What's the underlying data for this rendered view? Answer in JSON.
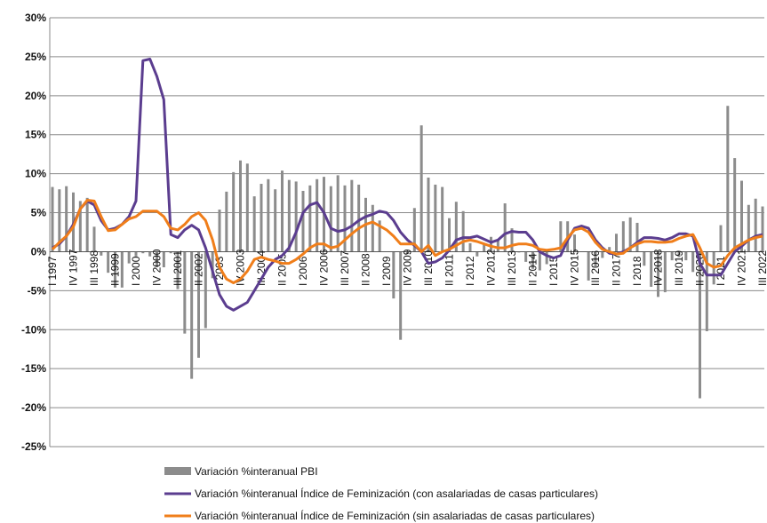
{
  "chart_data": {
    "type": "bar-line",
    "categories": [
      "I 1997",
      null,
      null,
      "IV 1997",
      null,
      null,
      "III 1998",
      null,
      null,
      "II 1999",
      null,
      null,
      "I 2000",
      null,
      null,
      "IV 2000",
      null,
      null,
      "III 2001",
      null,
      null,
      "II 2002",
      null,
      null,
      "I 2003",
      null,
      null,
      "IV 2003",
      null,
      null,
      "III 2004",
      null,
      null,
      "II 2005",
      null,
      null,
      "I 2006",
      null,
      null,
      "IV 2006",
      null,
      null,
      "III 2007",
      null,
      null,
      "II 2008",
      null,
      null,
      "I 2009",
      null,
      null,
      "IV 2009",
      null,
      null,
      "III 2010",
      null,
      null,
      "II 2011",
      null,
      null,
      "I 2012",
      null,
      null,
      "IV 2012",
      null,
      null,
      "III 2013",
      null,
      null,
      "II 2014",
      null,
      null,
      "I 2015",
      null,
      null,
      "IV 2015",
      null,
      null,
      "III 2016",
      null,
      null,
      "II 2017",
      null,
      null,
      "I 2018",
      null,
      null,
      "IV 2018",
      null,
      null,
      "III 2019",
      null,
      null,
      "II 2020",
      null,
      null,
      "I 2021",
      null,
      null,
      "IV 2021",
      null,
      null,
      "III 2022"
    ],
    "series": [
      {
        "name": "Variación %interanual PBI",
        "kind": "bar",
        "color": "#8c8c8c",
        "values": [
          8.3,
          8.0,
          8.4,
          7.6,
          6.5,
          6.9,
          3.2,
          -0.5,
          -2.7,
          -4.6,
          -4.6,
          -1.5,
          -0.6,
          -0.2,
          -0.6,
          -2.0,
          -2.0,
          -0.2,
          -4.8,
          -10.5,
          -16.3,
          -13.6,
          -9.8,
          -3.4,
          5.4,
          7.7,
          10.2,
          11.7,
          11.3,
          7.1,
          8.7,
          9.3,
          8.0,
          10.4,
          9.2,
          9.0,
          7.8,
          8.5,
          9.3,
          9.6,
          8.4,
          9.8,
          8.5,
          9.2,
          8.6,
          6.9,
          6.0,
          4.0,
          0.0,
          -6.0,
          -11.3,
          -0.3,
          5.6,
          16.2,
          9.5,
          8.6,
          8.3,
          4.3,
          6.4,
          5.2,
          1.1,
          -0.6,
          0.9,
          1.9,
          1.5,
          6.2,
          3.0,
          -0.1,
          -1.3,
          -2.2,
          -2.4,
          -1.6,
          0.0,
          3.9,
          3.9,
          2.2,
          0.0,
          -3.7,
          -1.9,
          -0.8,
          0.6,
          2.3,
          3.9,
          4.4,
          3.7,
          -1.8,
          -4.5,
          -5.8,
          -5.2,
          -1.1,
          -0.7,
          -1.1,
          -2.6,
          -18.8,
          -10.2,
          -4.2,
          3.4,
          18.7,
          12.0,
          9.1,
          6.0,
          6.8,
          5.8
        ]
      },
      {
        "name": "Variación %interanual Índice de Feminización (con asalariadas de casas particulares)",
        "kind": "line",
        "color": "#5b3d8f",
        "values": [
          0.5,
          1.0,
          2.0,
          3.5,
          5.5,
          6.5,
          6.0,
          4.0,
          2.8,
          3.0,
          3.5,
          4.5,
          6.5,
          24.5,
          24.7,
          22.5,
          19.5,
          2.2,
          1.8,
          2.8,
          3.4,
          2.8,
          0.5,
          -2.5,
          -5.5,
          -7.0,
          -7.5,
          -7.0,
          -6.5,
          -5.0,
          -3.5,
          -2.0,
          -1.0,
          -0.5,
          0.5,
          2.5,
          5.0,
          6.0,
          6.3,
          5.0,
          3.0,
          2.6,
          2.8,
          3.3,
          4.0,
          4.5,
          4.8,
          5.2,
          5.0,
          4.0,
          2.5,
          1.5,
          0.8,
          0.0,
          -1.5,
          -1.3,
          -0.8,
          0.2,
          1.5,
          1.8,
          1.8,
          2.0,
          1.6,
          1.2,
          1.5,
          2.3,
          2.6,
          2.5,
          2.5,
          1.5,
          0.0,
          -0.5,
          -0.8,
          -0.5,
          1.5,
          3.0,
          3.3,
          3.0,
          1.5,
          0.5,
          -0.2,
          -0.3,
          0.0,
          0.5,
          1.2,
          1.8,
          1.8,
          1.7,
          1.5,
          1.8,
          2.3,
          2.3,
          2.0,
          -1.5,
          -3.0,
          -3.0,
          -3.0,
          -1.5,
          0.0,
          0.7,
          1.5,
          2.0,
          2.2
        ]
      },
      {
        "name": "Variación %interanual Índice de Feminización (sin asalariadas de casas particulares)",
        "kind": "line",
        "color": "#f07e1a",
        "values": [
          0.3,
          1.2,
          2.0,
          3.2,
          5.5,
          6.6,
          6.5,
          4.5,
          2.7,
          2.8,
          3.5,
          4.2,
          4.5,
          5.2,
          5.2,
          5.2,
          4.5,
          3.0,
          2.8,
          3.5,
          4.5,
          5.0,
          4.0,
          1.5,
          -2.0,
          -3.5,
          -4.0,
          -3.5,
          -2.5,
          -1.0,
          -0.7,
          -1.0,
          -1.2,
          -1.5,
          -1.5,
          -1.0,
          -0.3,
          0.5,
          1.0,
          1.0,
          0.5,
          0.7,
          1.5,
          2.3,
          3.0,
          3.5,
          3.8,
          3.3,
          2.8,
          2.0,
          1.0,
          1.0,
          1.0,
          0.0,
          0.8,
          -0.5,
          0.0,
          0.3,
          0.8,
          1.3,
          1.5,
          1.3,
          1.0,
          0.7,
          0.5,
          0.5,
          0.8,
          1.0,
          1.0,
          0.8,
          0.3,
          0.2,
          0.3,
          0.5,
          1.8,
          2.8,
          3.0,
          2.5,
          1.2,
          0.3,
          0.0,
          -0.3,
          -0.2,
          0.5,
          1.0,
          1.3,
          1.3,
          1.2,
          1.2,
          1.3,
          1.7,
          2.0,
          2.2,
          0.5,
          -1.5,
          -2.0,
          -1.8,
          -0.5,
          0.5,
          1.0,
          1.5,
          1.8,
          2.0
        ]
      }
    ],
    "ylim": [
      -25,
      30
    ],
    "yticks": [
      {
        "value": -25,
        "label": "-25%"
      },
      {
        "value": -20,
        "label": "-20%"
      },
      {
        "value": -15,
        "label": "-15%"
      },
      {
        "value": -10,
        "label": "-10%"
      },
      {
        "value": -5,
        "label": "-5%"
      },
      {
        "value": 0,
        "label": "0%"
      },
      {
        "value": 5,
        "label": "5%"
      },
      {
        "value": 10,
        "label": "10%"
      },
      {
        "value": 15,
        "label": "15%"
      },
      {
        "value": 20,
        "label": "20%"
      },
      {
        "value": 25,
        "label": "25%"
      },
      {
        "value": 30,
        "label": "30%"
      }
    ],
    "grid": true,
    "legend": "bottom"
  }
}
